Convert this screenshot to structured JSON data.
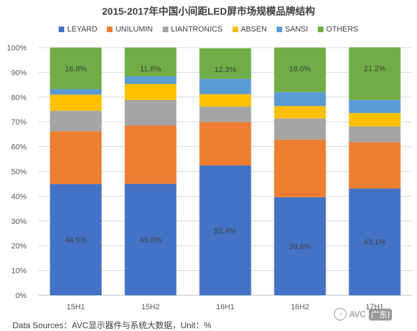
{
  "chart_data": {
    "type": "bar",
    "stacked": true,
    "percent": true,
    "title": "2015-2017年中国小间距LED屏市场规模品牌结构",
    "categories": [
      "15H1",
      "15H2",
      "16H1",
      "16H2",
      "17H1"
    ],
    "series": [
      {
        "name": "LEYARD",
        "color": "#4472c4",
        "values": [
          44.9,
          45.0,
          52.4,
          39.6,
          43.1
        ],
        "labels": [
          "44.9%",
          "45.0%",
          "52.4%",
          "39.6%",
          "43.1%"
        ]
      },
      {
        "name": "UNILUMIN",
        "color": "#ed7d31",
        "values": [
          21.3,
          23.5,
          17.6,
          23.2,
          18.7
        ]
      },
      {
        "name": "LIANTRONICS",
        "color": "#a5a5a5",
        "values": [
          8.3,
          10.3,
          6.2,
          8.6,
          6.4
        ]
      },
      {
        "name": "ABSEN",
        "color": "#ffc000",
        "values": [
          6.5,
          6.5,
          5.0,
          5.0,
          5.4
        ]
      },
      {
        "name": "SANSI",
        "color": "#5b9bd5",
        "values": [
          2.2,
          3.1,
          6.2,
          5.6,
          5.3
        ]
      },
      {
        "name": "OTHERS",
        "color": "#70ad47",
        "values": [
          16.8,
          11.6,
          12.3,
          18.0,
          21.2
        ],
        "labels": [
          "16.8%",
          "11.6%",
          "12.3%",
          "18.0%",
          "21.2%"
        ]
      }
    ],
    "ylim": [
      0,
      100
    ],
    "yticks": [
      "0%",
      "10%",
      "20%",
      "30%",
      "40%",
      "50%",
      "60%",
      "70%",
      "80%",
      "90%",
      "100%"
    ],
    "grid": true,
    "legend": "top"
  },
  "footer": {
    "source": "Data Sources：AVC显示器件与系统大数据，Unit：%",
    "watermark": "AVC",
    "watermark_icon": "wechat-icon",
    "watermark_badge": "广东Ⅰ"
  }
}
